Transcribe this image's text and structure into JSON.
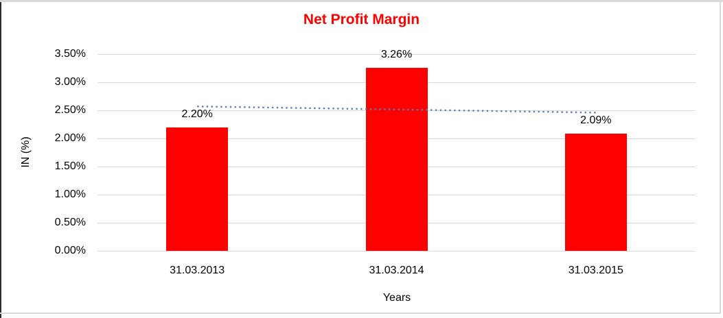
{
  "chart_data": {
    "type": "bar",
    "title": "Net Profit Margin",
    "title_color": "#ff0000",
    "xlabel": "Years",
    "ylabel": "IN (%)",
    "categories": [
      "31.03.2013",
      "31.03.2014",
      "31.03.2015"
    ],
    "values": [
      2.2,
      3.26,
      2.09
    ],
    "value_labels": [
      "2.20%",
      "3.26%",
      "2.09%"
    ],
    "bar_color": "#ff0000",
    "ylim": [
      0,
      3.5
    ],
    "yticks": [
      {
        "v": 0.0,
        "label": "0.00%"
      },
      {
        "v": 0.5,
        "label": "0.50%"
      },
      {
        "v": 1.0,
        "label": "1.00%"
      },
      {
        "v": 1.5,
        "label": "1.50%"
      },
      {
        "v": 2.0,
        "label": "2.00%"
      },
      {
        "v": 2.5,
        "label": "2.50%"
      },
      {
        "v": 3.0,
        "label": "3.00%"
      },
      {
        "v": 3.5,
        "label": "3.50%"
      }
    ],
    "grid": true,
    "gridline_color": "#d9d9d9",
    "legend": "none",
    "trendline": {
      "type": "linear",
      "style": "dotted",
      "color": "#4f81bd",
      "start_value": 2.57,
      "end_value": 2.46
    }
  }
}
